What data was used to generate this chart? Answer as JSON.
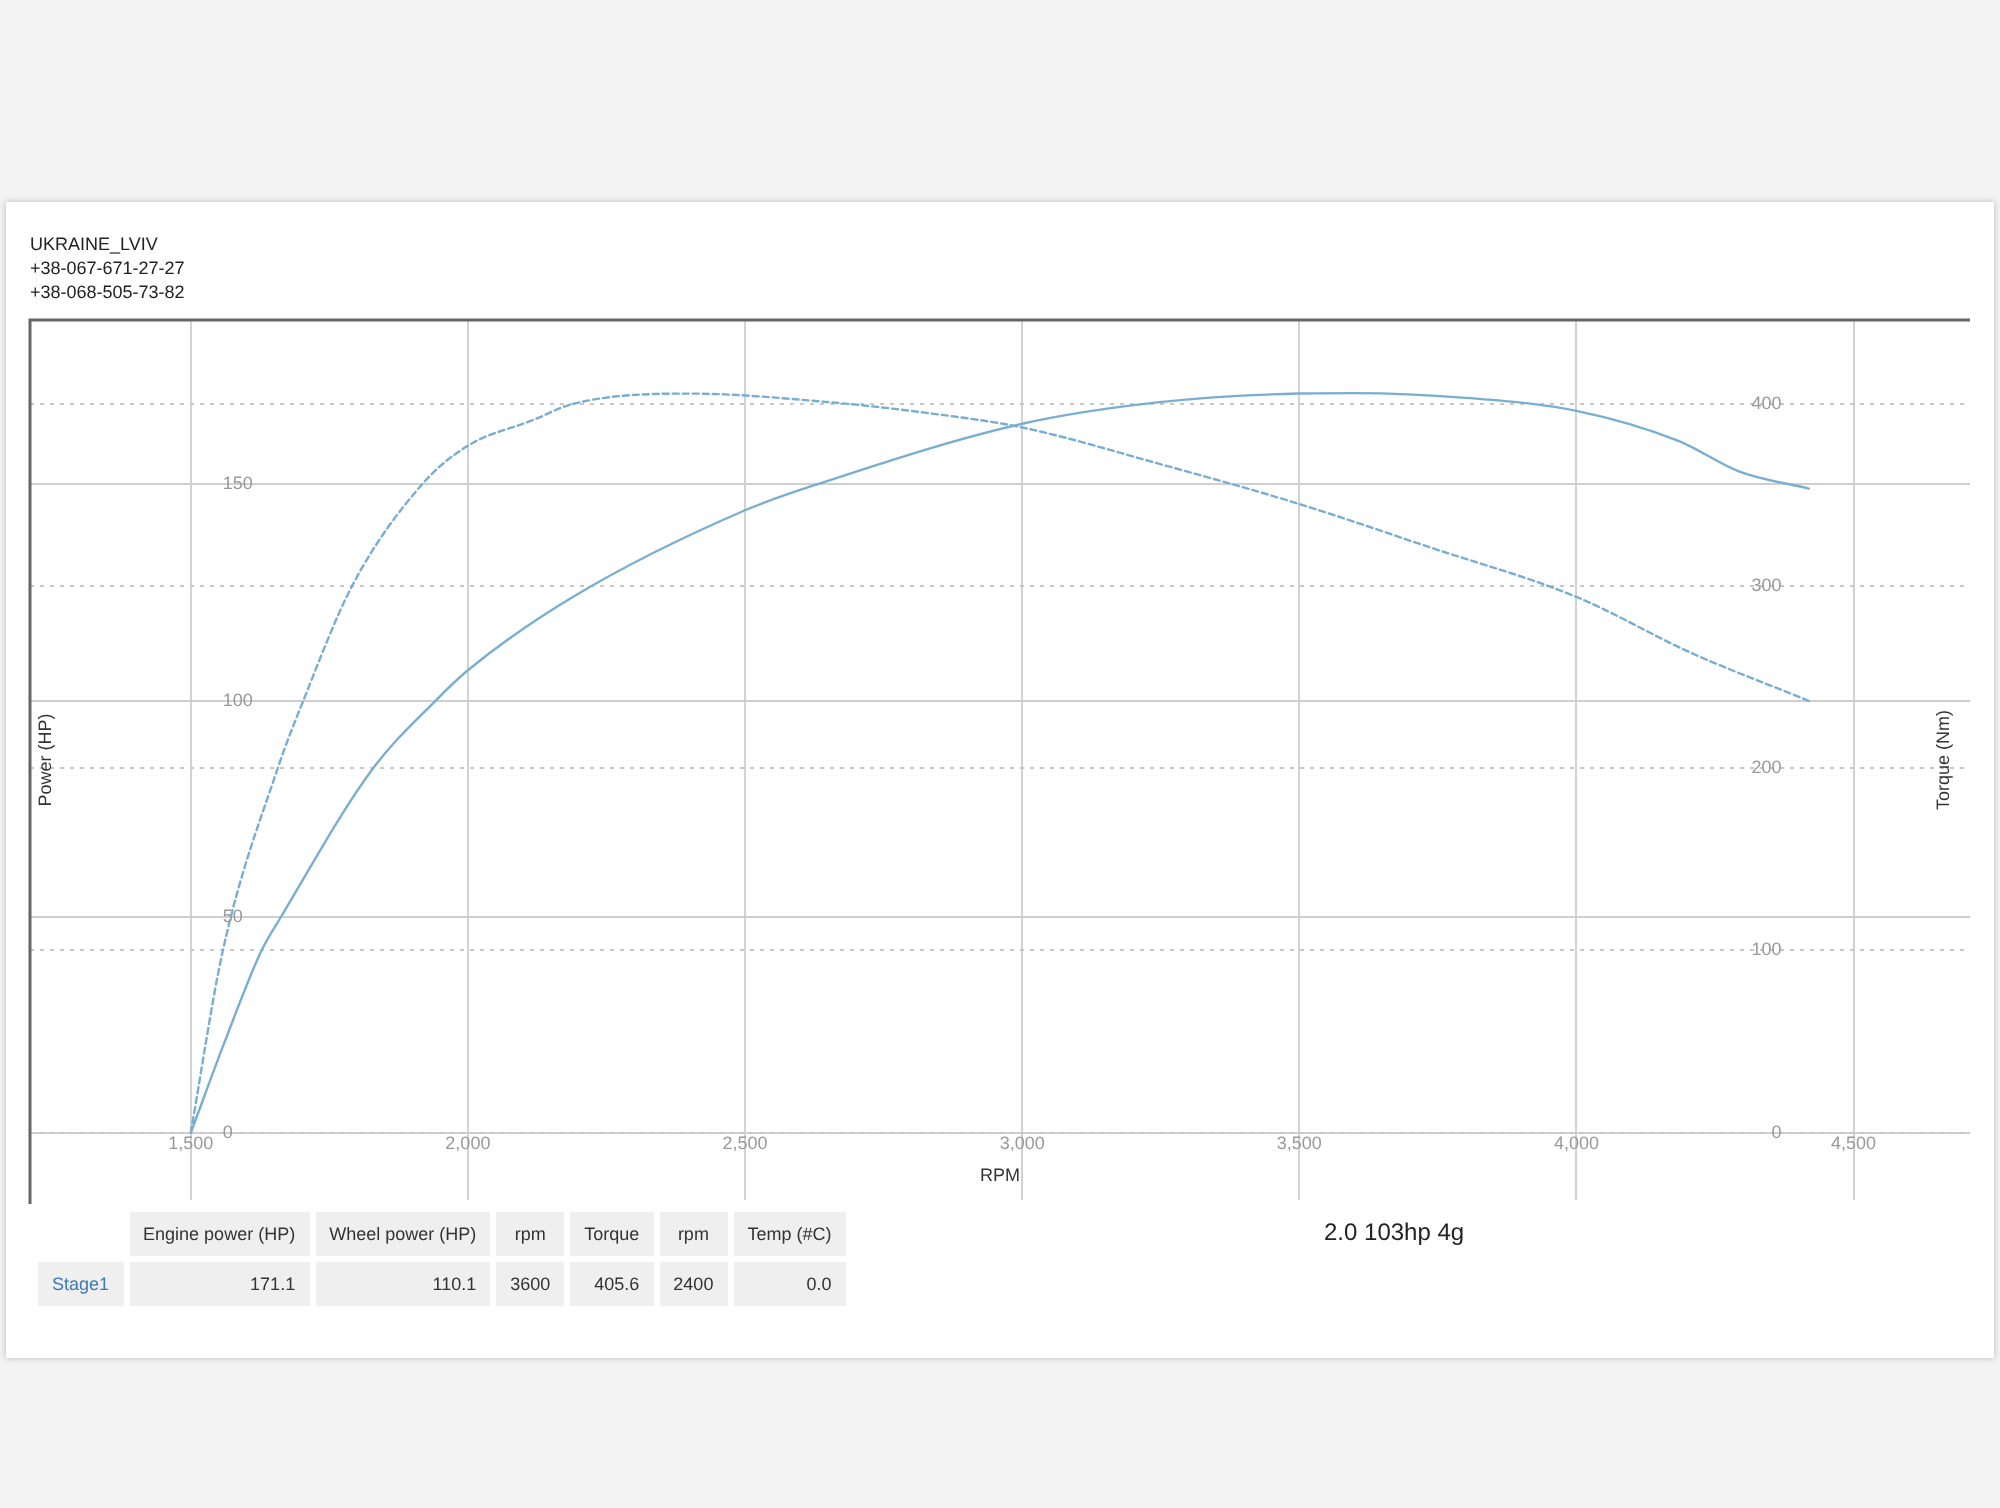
{
  "chart_data": {
    "type": "line",
    "xlabel": "RPM",
    "ylabel": "Power (HP)",
    "y2label": "Torque (Nm)",
    "annotations": [
      "UKRAINE_LVIV",
      "+38-067-671-27-27",
      "+38-068-505-73-82",
      "2.0 103hp 4g",
      "Engine power (HP)",
      "Wheel power (HP)",
      "rpm",
      "Torque",
      "rpm",
      "Temp (#C)",
      "Stage1",
      "171.1",
      "110.1",
      "3600",
      "405.6",
      "2400",
      "0.0"
    ],
    "series": [
      {
        "color": "#7aaed0",
        "line_style": "solid",
        "x": [
          1500,
          1561,
          1627,
          1663,
          1827,
          1942,
          2000,
          2190,
          2500,
          2630,
          3000,
          3248,
          3500,
          3600,
          3800,
          4000,
          4185,
          4293,
          4419
        ],
        "values": [
          0,
          21,
          42,
          50,
          84,
          100,
          107,
          124,
          144,
          150,
          164,
          169,
          171,
          171.1,
          170,
          167,
          160,
          153,
          149
        ]
      },
      {
        "color": "#7aaed0",
        "line_style": "dashed",
        "axis": "y2",
        "x": [
          1500,
          1558,
          1657,
          1703,
          1791,
          1918,
          2000,
          2117,
          2190,
          2400,
          2648,
          2828,
          3000,
          3248,
          3500,
          3728,
          4000,
          4209,
          4419
        ],
        "values": [
          0,
          100,
          200,
          237,
          300,
          356,
          377,
          391,
          400,
          405.6,
          401,
          395,
          387,
          367,
          345,
          322,
          294,
          263,
          237
        ]
      }
    ],
    "xlim": [
      1210,
      4710
    ],
    "xticks": [
      {
        "value": 1500,
        "label": "1,500"
      },
      {
        "value": 2000,
        "label": "2,000"
      },
      {
        "value": 2500,
        "label": "2,500"
      },
      {
        "value": 3000,
        "label": "3,000"
      },
      {
        "value": 3500,
        "label": "3,500"
      },
      {
        "value": 4000,
        "label": "4,000"
      },
      {
        "value": 4500,
        "label": "4,500"
      }
    ],
    "ylim": [
      -15.5,
      188
    ],
    "yticks": [
      0,
      50,
      100,
      150
    ],
    "y2lim": [
      -37,
      446
    ],
    "y2ticks": [
      0,
      100,
      200,
      300,
      400
    ],
    "grid": true
  }
}
